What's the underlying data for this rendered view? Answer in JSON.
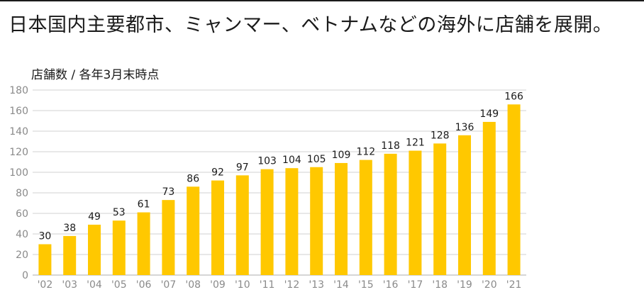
{
  "header": {
    "title": "日本国内主要都市、ミャンマー、ベトナムなどの海外に店舗を展開。"
  },
  "chart_data": {
    "type": "bar",
    "title": "",
    "ylabel": "店舗数 / 各年3月末時点",
    "xlabel": "",
    "ylim": [
      0,
      180
    ],
    "yticks": [
      0,
      20,
      40,
      60,
      80,
      100,
      120,
      140,
      160,
      180
    ],
    "grid": true,
    "bar_color": "#FFC800",
    "categories": [
      "'02",
      "'03",
      "'04",
      "'05",
      "'06",
      "'07",
      "'08",
      "'09",
      "'10",
      "'11",
      "'12",
      "'13",
      "'14",
      "'15",
      "'16",
      "'17",
      "'18",
      "'19",
      "'20",
      "'21"
    ],
    "values": [
      30,
      38,
      49,
      53,
      61,
      73,
      86,
      92,
      97,
      103,
      104,
      105,
      109,
      112,
      118,
      121,
      128,
      136,
      149,
      166
    ]
  }
}
